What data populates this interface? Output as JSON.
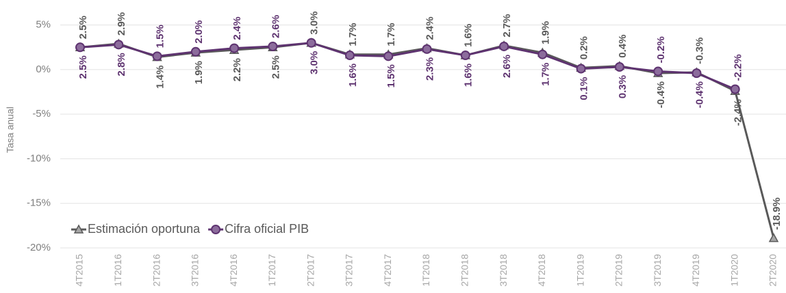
{
  "chart_data": {
    "type": "line",
    "y_label": "Tasa anual",
    "categories": [
      "4T2015",
      "1T2016",
      "2T2016",
      "3T2016",
      "4T2016",
      "1T2017",
      "2T2017",
      "3T2017",
      "4T2017",
      "1T2018",
      "2T2018",
      "3T2018",
      "4T2018",
      "1T2019",
      "2T2019",
      "3T2019",
      "4T2019",
      "1T2020",
      "2T2020"
    ],
    "series": [
      {
        "name": "Estimación oportuna",
        "color": "#595959",
        "marker": "triangle",
        "values": [
          2.5,
          2.9,
          1.4,
          1.9,
          2.2,
          2.5,
          3.0,
          1.7,
          1.7,
          2.4,
          1.6,
          2.7,
          1.9,
          0.2,
          0.4,
          -0.4,
          -0.3,
          -2.4,
          -18.9
        ],
        "value_labels": [
          "2.5%",
          "2.9%",
          "1.4%",
          "1.9%",
          "2.2%",
          "2.5%",
          "3.0%",
          "1.7%",
          "1.7%",
          "2.4%",
          "1.6%",
          "2.7%",
          "1.9%",
          "0.2%",
          "0.4%",
          "-0.4%",
          "-0.3%",
          "-2.4%",
          "-18.9%"
        ]
      },
      {
        "name": "Cifra oficial PIB",
        "color": "#5e3370",
        "marker": "circle",
        "values": [
          2.5,
          2.8,
          1.5,
          2.0,
          2.4,
          2.6,
          3.0,
          1.6,
          1.5,
          2.3,
          1.6,
          2.6,
          1.7,
          0.1,
          0.3,
          -0.2,
          -0.4,
          -2.2,
          null
        ],
        "value_labels": [
          "2.5%",
          "2.8%",
          "1.5%",
          "2.0%",
          "2.4%",
          "2.6%",
          "3.0%",
          "1.6%",
          "1.5%",
          "2.3%",
          "1.6%",
          "2.6%",
          "1.7%",
          "0.1%",
          "0.3%",
          "-0.2%",
          "-0.4%",
          "-2.2%",
          null
        ]
      }
    ],
    "ylim": [
      -20,
      7.5
    ],
    "yticks": [
      {
        "value": 5,
        "label": "5%"
      },
      {
        "value": 0,
        "label": "0%"
      },
      {
        "value": -5,
        "label": "-5%"
      },
      {
        "value": -10,
        "label": "-10%"
      },
      {
        "value": -15,
        "label": "-15%"
      },
      {
        "value": -20,
        "label": "-20%"
      }
    ],
    "grid": true,
    "legend": "lower left"
  }
}
